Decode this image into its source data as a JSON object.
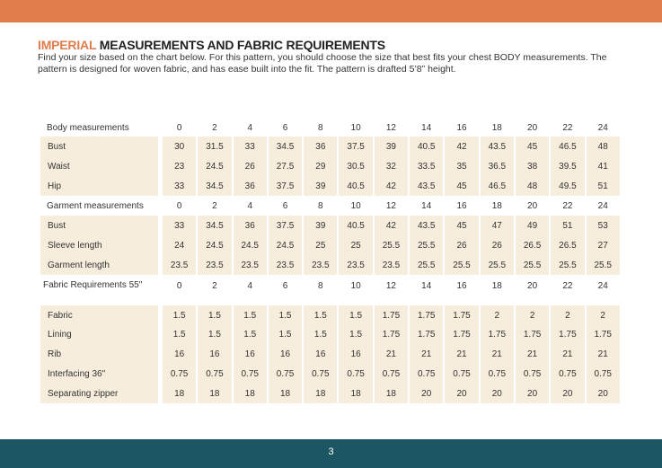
{
  "page": {
    "number": "3",
    "colors": {
      "header": "#e07b4c",
      "footer": "#1d5663",
      "cell": "#f6eddc"
    }
  },
  "title": {
    "accent": "IMPERIAL",
    "rest": " MEASUREMENTS AND FABRIC REQUIREMENTS"
  },
  "intro": "Find your size based on the chart below. For this pattern, you should choose the size that best fits your chest BODY measurements.  The pattern is designed for woven fabric, and has ease built into the fit. The pattern is drafted 5’8” height.",
  "table": {
    "rows": [
      {
        "type": "header",
        "label": "Body measurements",
        "values": [
          "0",
          "2",
          "4",
          "6",
          "8",
          "10",
          "12",
          "14",
          "16",
          "18",
          "20",
          "22",
          "24"
        ]
      },
      {
        "type": "data",
        "label": "Bust",
        "values": [
          "30",
          "31.5",
          "33",
          "34.5",
          "36",
          "37.5",
          "39",
          "40.5",
          "42",
          "43.5",
          "45",
          "46.5",
          "48"
        ]
      },
      {
        "type": "data",
        "label": "Waist",
        "values": [
          "23",
          "24.5",
          "26",
          "27.5",
          "29",
          "30.5",
          "32",
          "33.5",
          "35",
          "36.5",
          "38",
          "39.5",
          "41"
        ]
      },
      {
        "type": "data",
        "label": "Hip",
        "values": [
          "33",
          "34.5",
          "36",
          "37.5",
          "39",
          "40.5",
          "42",
          "43.5",
          "45",
          "46.5",
          "48",
          "49.5",
          "51"
        ]
      },
      {
        "type": "header",
        "label": "Garment measurements",
        "values": [
          "0",
          "2",
          "4",
          "6",
          "8",
          "10",
          "12",
          "14",
          "16",
          "18",
          "20",
          "22",
          "24"
        ]
      },
      {
        "type": "data",
        "label": "Bust",
        "values": [
          "33",
          "34.5",
          "36",
          "37.5",
          "39",
          "40.5",
          "42",
          "43.5",
          "45",
          "47",
          "49",
          "51",
          "53"
        ]
      },
      {
        "type": "data",
        "label": "Sleeve length",
        "values": [
          "24",
          "24.5",
          "24.5",
          "24.5",
          "25",
          "25",
          "25.5",
          "25.5",
          "26",
          "26",
          "26.5",
          "26.5",
          "27"
        ]
      },
      {
        "type": "data",
        "label": "Garment length",
        "values": [
          "23.5",
          "23.5",
          "23.5",
          "23.5",
          "23.5",
          "23.5",
          "23.5",
          "25.5",
          "25.5",
          "25.5",
          "25.5",
          "25.5",
          "25.5"
        ]
      },
      {
        "type": "header2",
        "label": "Fabric Requirements 55\"",
        "values": [
          "0",
          "2",
          "4",
          "6",
          "8",
          "10",
          "12",
          "14",
          "16",
          "18",
          "20",
          "22",
          "24"
        ]
      },
      {
        "type": "data",
        "label": "Fabric",
        "values": [
          "1.5",
          "1.5",
          "1.5",
          "1.5",
          "1.5",
          "1.5",
          "1.75",
          "1.75",
          "1.75",
          "2",
          "2",
          "2",
          "2"
        ]
      },
      {
        "type": "data",
        "label": "Lining",
        "values": [
          "1.5",
          "1.5",
          "1.5",
          "1.5",
          "1.5",
          "1.5",
          "1.75",
          "1.75",
          "1.75",
          "1.75",
          "1.75",
          "1.75",
          "1.75"
        ]
      },
      {
        "type": "data",
        "label": "Rib",
        "values": [
          "16",
          "16",
          "16",
          "16",
          "16",
          "16",
          "21",
          "21",
          "21",
          "21",
          "21",
          "21",
          "21"
        ]
      },
      {
        "type": "data",
        "label": "Interfacing 36\"",
        "values": [
          "0.75",
          "0.75",
          "0.75",
          "0.75",
          "0.75",
          "0.75",
          "0.75",
          "0.75",
          "0.75",
          "0.75",
          "0.75",
          "0.75",
          "0.75"
        ]
      },
      {
        "type": "data",
        "label": "Separating zipper",
        "values": [
          "18",
          "18",
          "18",
          "18",
          "18",
          "18",
          "18",
          "20",
          "20",
          "20",
          "20",
          "20",
          "20"
        ]
      }
    ]
  }
}
